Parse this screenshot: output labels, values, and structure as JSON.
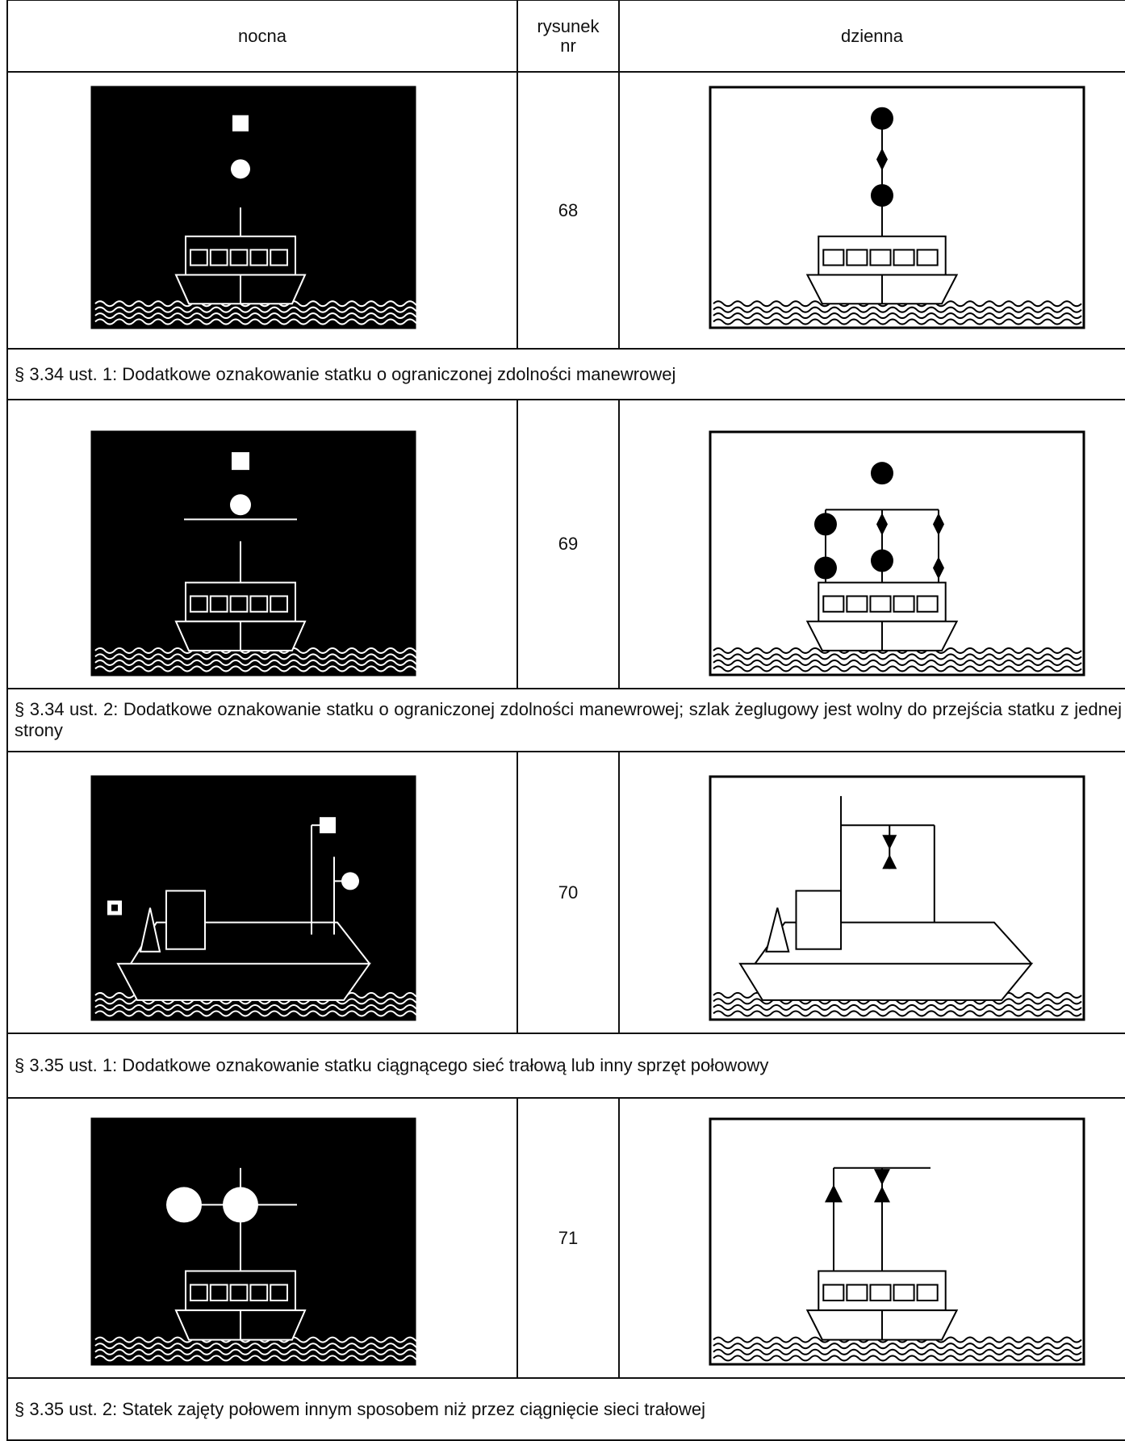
{
  "header": {
    "night": "nocna",
    "number": "rysunek nr",
    "day": "dzienna"
  },
  "rows": [
    {
      "number": "68",
      "caption": "§ 3.34 ust. 1: Dodatkowe oznakowanie statku o ograniczonej zdolności manewrowej"
    },
    {
      "number": "69",
      "caption": "§ 3.34 ust. 2: Dodatkowe oznakowanie statku o ograniczonej zdolności manewrowej; szlak żeglugowy jest wolny do przejścia statku z jednej strony"
    },
    {
      "number": "70",
      "caption": "§ 3.35 ust. 1: Dodatkowe oznakowanie statku ciągnącego sieć trałową lub inny sprzęt połowowy"
    },
    {
      "number": "71",
      "caption": "§ 3.35 ust. 2: Statek zajęty połowem innym sposobem niż przez ciągnięcie sieci trałowej"
    }
  ]
}
